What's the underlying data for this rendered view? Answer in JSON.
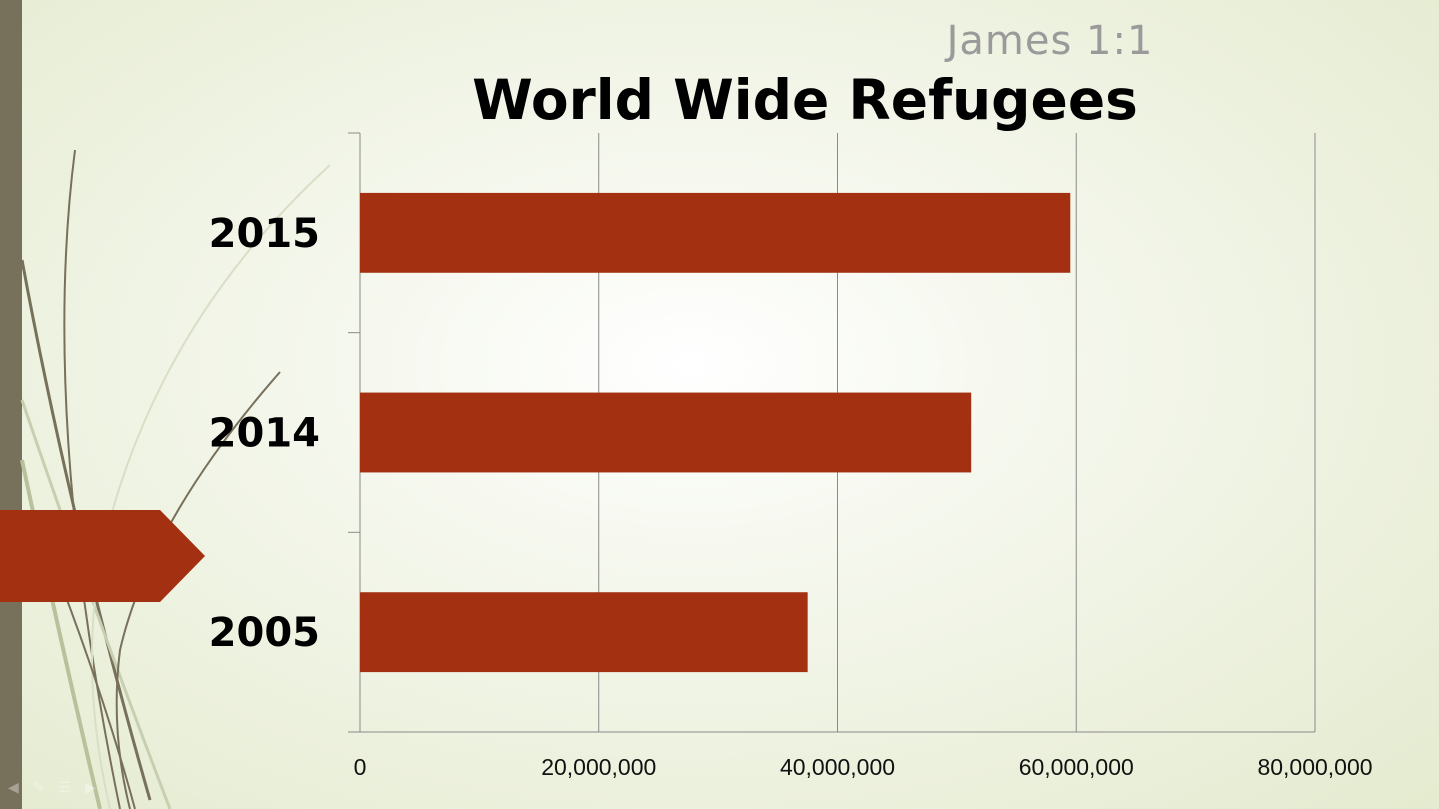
{
  "slide": {
    "subtitle": "James 1:1",
    "title": "World Wide Refugees"
  },
  "colors": {
    "bar": "#a33011",
    "accent_band": "#77705a",
    "arrow": "#a33011",
    "grid": "#8a8a8a"
  },
  "chart_data": {
    "type": "bar",
    "orientation": "horizontal",
    "title": "World Wide Refugees",
    "categories": [
      "2015",
      "2014",
      "2005"
    ],
    "values": [
      59500000,
      51200000,
      37500000
    ],
    "xlim": [
      0,
      80000000
    ],
    "x_ticks": [
      0,
      20000000,
      40000000,
      60000000,
      80000000
    ],
    "x_tick_labels": [
      "0",
      "20,000,000",
      "40,000,000",
      "60,000,000",
      "80,000,000"
    ],
    "grid": "vertical major gridlines"
  }
}
